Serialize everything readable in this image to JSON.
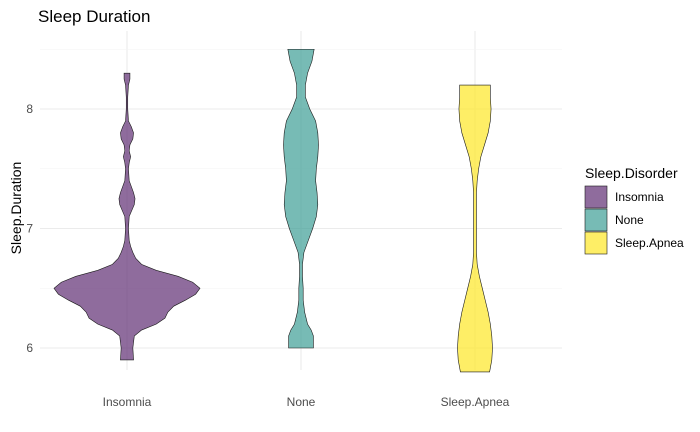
{
  "chart_data": {
    "type": "violin",
    "title": "Sleep Duration",
    "xlabel": "",
    "ylabel": "Sleep.Duration",
    "categories": [
      "Insomnia",
      "None",
      "Sleep.Apnea"
    ],
    "y_ticks": [
      6,
      7,
      8
    ],
    "ylim": [
      5.8,
      8.55
    ],
    "grid": true,
    "fill_opacity": 0.7,
    "legend": {
      "title": "Sleep.Disorder",
      "position": "right",
      "entries": [
        "Insomnia",
        "None",
        "Sleep.Apnea"
      ]
    },
    "colors": {
      "Insomnia": "#5f2d73",
      "None": "#3d9e96",
      "Sleep.Apnea": "#fde725"
    },
    "series": [
      {
        "name": "Insomnia",
        "y_range": [
          5.9,
          8.3
        ],
        "density_profile": [
          [
            5.9,
            0.09
          ],
          [
            6.0,
            0.08
          ],
          [
            6.1,
            0.1
          ],
          [
            6.15,
            0.2
          ],
          [
            6.2,
            0.4
          ],
          [
            6.25,
            0.52
          ],
          [
            6.3,
            0.56
          ],
          [
            6.35,
            0.64
          ],
          [
            6.4,
            0.8
          ],
          [
            6.45,
            0.94
          ],
          [
            6.5,
            1.0
          ],
          [
            6.55,
            0.9
          ],
          [
            6.6,
            0.7
          ],
          [
            6.65,
            0.4
          ],
          [
            6.7,
            0.2
          ],
          [
            6.75,
            0.12
          ],
          [
            6.8,
            0.08
          ],
          [
            6.85,
            0.05
          ],
          [
            6.9,
            0.03
          ],
          [
            7.0,
            0.02
          ],
          [
            7.1,
            0.03
          ],
          [
            7.2,
            0.1
          ],
          [
            7.25,
            0.11
          ],
          [
            7.3,
            0.09
          ],
          [
            7.4,
            0.03
          ],
          [
            7.5,
            0.02
          ],
          [
            7.55,
            0.03
          ],
          [
            7.6,
            0.05
          ],
          [
            7.65,
            0.03
          ],
          [
            7.7,
            0.04
          ],
          [
            7.75,
            0.08
          ],
          [
            7.8,
            0.09
          ],
          [
            7.85,
            0.06
          ],
          [
            7.9,
            0.02
          ],
          [
            8.0,
            0.01
          ],
          [
            8.1,
            0.01
          ],
          [
            8.2,
            0.02
          ],
          [
            8.25,
            0.04
          ],
          [
            8.3,
            0.04
          ]
        ]
      },
      {
        "name": "None",
        "y_range": [
          6.0,
          8.5
        ],
        "density_profile": [
          [
            6.0,
            0.17
          ],
          [
            6.1,
            0.17
          ],
          [
            6.15,
            0.14
          ],
          [
            6.2,
            0.09
          ],
          [
            6.3,
            0.05
          ],
          [
            6.4,
            0.03
          ],
          [
            6.5,
            0.03
          ],
          [
            6.6,
            0.02
          ],
          [
            6.7,
            0.02
          ],
          [
            6.8,
            0.04
          ],
          [
            6.9,
            0.1
          ],
          [
            7.0,
            0.16
          ],
          [
            7.1,
            0.21
          ],
          [
            7.2,
            0.23
          ],
          [
            7.3,
            0.22
          ],
          [
            7.4,
            0.2
          ],
          [
            7.5,
            0.21
          ],
          [
            7.6,
            0.23
          ],
          [
            7.7,
            0.24
          ],
          [
            7.8,
            0.23
          ],
          [
            7.9,
            0.2
          ],
          [
            8.0,
            0.12
          ],
          [
            8.1,
            0.06
          ],
          [
            8.2,
            0.06
          ],
          [
            8.3,
            0.09
          ],
          [
            8.4,
            0.15
          ],
          [
            8.5,
            0.18
          ]
        ]
      },
      {
        "name": "Sleep.Apnea",
        "y_range": [
          5.8,
          8.2
        ],
        "density_profile": [
          [
            5.8,
            0.2
          ],
          [
            5.9,
            0.23
          ],
          [
            6.0,
            0.24
          ],
          [
            6.1,
            0.23
          ],
          [
            6.2,
            0.21
          ],
          [
            6.3,
            0.18
          ],
          [
            6.4,
            0.14
          ],
          [
            6.5,
            0.1
          ],
          [
            6.6,
            0.06
          ],
          [
            6.7,
            0.03
          ],
          [
            6.8,
            0.02
          ],
          [
            6.9,
            0.02
          ],
          [
            7.0,
            0.02
          ],
          [
            7.1,
            0.02
          ],
          [
            7.2,
            0.02
          ],
          [
            7.3,
            0.02
          ],
          [
            7.4,
            0.03
          ],
          [
            7.5,
            0.05
          ],
          [
            7.6,
            0.08
          ],
          [
            7.7,
            0.13
          ],
          [
            7.8,
            0.18
          ],
          [
            7.9,
            0.21
          ],
          [
            8.0,
            0.22
          ],
          [
            8.1,
            0.21
          ],
          [
            8.2,
            0.21
          ]
        ]
      }
    ]
  }
}
